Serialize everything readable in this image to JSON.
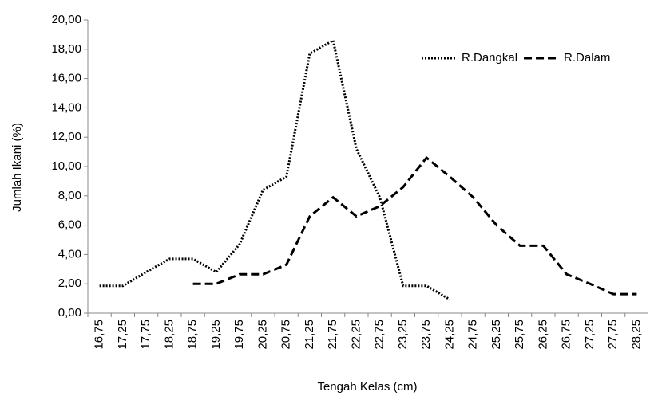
{
  "chart_data": {
    "type": "line",
    "x_label": "Tengah Kelas (cm)",
    "y_label": "Jumlah Ikani (%)",
    "categories": [
      "16,75",
      "17,25",
      "17,75",
      "18,25",
      "18,75",
      "19,25",
      "19,75",
      "20,25",
      "20,75",
      "21,25",
      "21,75",
      "22,25",
      "22,75",
      "23,25",
      "23,75",
      "24,25",
      "24,75",
      "25,25",
      "25,75",
      "26,25",
      "26,75",
      "27,25",
      "27,75",
      "28,25"
    ],
    "series": [
      {
        "name": "R.Dangkal",
        "color": "#000000",
        "dash": "dotted",
        "values": [
          1.86,
          1.86,
          2.8,
          3.7,
          3.7,
          2.8,
          4.7,
          8.4,
          9.3,
          17.7,
          18.6,
          11.2,
          7.9,
          1.86,
          1.86,
          0.93,
          null,
          null,
          null,
          null,
          null,
          null,
          null,
          null
        ]
      },
      {
        "name": "R.Dalam",
        "color": "#000000",
        "dash": "dashed",
        "values": [
          null,
          null,
          null,
          null,
          2.0,
          2.0,
          2.65,
          2.65,
          3.3,
          6.6,
          7.9,
          6.6,
          7.3,
          8.6,
          10.6,
          9.3,
          7.9,
          6.0,
          4.6,
          4.6,
          2.65,
          2.0,
          1.3,
          1.3
        ]
      }
    ],
    "ylim": [
      0,
      20
    ],
    "yticks": [
      {
        "value": 0,
        "label": "0,00"
      },
      {
        "value": 2,
        "label": "2,00"
      },
      {
        "value": 4,
        "label": "4,00"
      },
      {
        "value": 6,
        "label": "6,00"
      },
      {
        "value": 8,
        "label": "8,00"
      },
      {
        "value": 10,
        "label": "10,00"
      },
      {
        "value": 12,
        "label": "12,00"
      },
      {
        "value": 14,
        "label": "14,00"
      },
      {
        "value": 16,
        "label": "16,00"
      },
      {
        "value": 18,
        "label": "18,00"
      },
      {
        "value": 20,
        "label": "20,00"
      }
    ],
    "legend": "top-right"
  }
}
